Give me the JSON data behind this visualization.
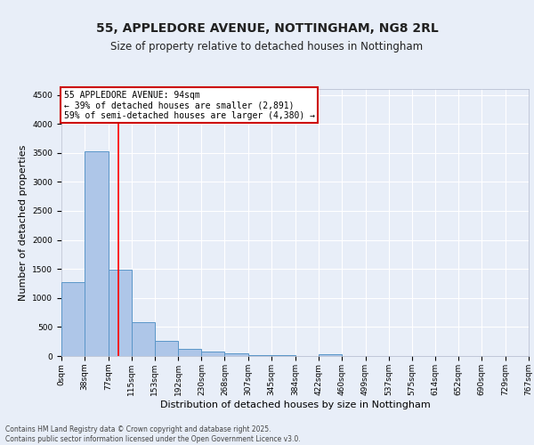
{
  "title1": "55, APPLEDORE AVENUE, NOTTINGHAM, NG8 2RL",
  "title2": "Size of property relative to detached houses in Nottingham",
  "xlabel": "Distribution of detached houses by size in Nottingham",
  "ylabel": "Number of detached properties",
  "bar_values": [
    1280,
    3530,
    1490,
    590,
    260,
    130,
    80,
    45,
    20,
    10,
    0,
    30,
    0,
    0,
    0,
    0,
    0,
    0,
    0,
    0
  ],
  "bin_edges": [
    0,
    38,
    77,
    115,
    153,
    192,
    230,
    268,
    307,
    345,
    384,
    422,
    460,
    499,
    537,
    575,
    614,
    652,
    690,
    729,
    767
  ],
  "tick_labels": [
    "0sqm",
    "38sqm",
    "77sqm",
    "115sqm",
    "153sqm",
    "192sqm",
    "230sqm",
    "268sqm",
    "307sqm",
    "345sqm",
    "384sqm",
    "422sqm",
    "460sqm",
    "499sqm",
    "537sqm",
    "575sqm",
    "614sqm",
    "652sqm",
    "690sqm",
    "729sqm",
    "767sqm"
  ],
  "bar_color": "#aec6e8",
  "bar_edge_color": "#5a96c8",
  "bar_linewidth": 0.7,
  "red_line_x": 94,
  "ylim": [
    0,
    4600
  ],
  "yticks": [
    0,
    500,
    1000,
    1500,
    2000,
    2500,
    3000,
    3500,
    4000,
    4500
  ],
  "bg_color": "#e8eef8",
  "plot_bg_color": "#e8eef8",
  "grid_color": "#ffffff",
  "annotation_text": "55 APPLEDORE AVENUE: 94sqm\n← 39% of detached houses are smaller (2,891)\n59% of semi-detached houses are larger (4,380) →",
  "annotation_box_color": "#ffffff",
  "annotation_border_color": "#cc0000",
  "footer_text": "Contains HM Land Registry data © Crown copyright and database right 2025.\nContains public sector information licensed under the Open Government Licence v3.0.",
  "title_fontsize": 10,
  "subtitle_fontsize": 8.5,
  "tick_fontsize": 6.5,
  "ylabel_fontsize": 8,
  "xlabel_fontsize": 8,
  "annot_fontsize": 7
}
